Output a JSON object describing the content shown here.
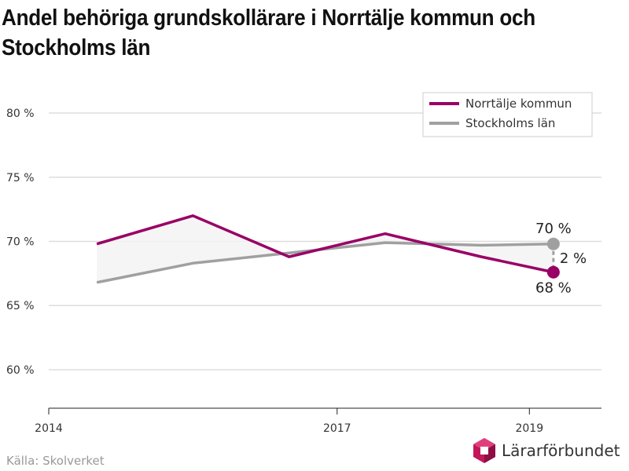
{
  "chart_data": {
    "type": "line",
    "title": "Andel behöriga grundskollärare i Norrtälje kommun och Stockholms län",
    "xlabel": "",
    "ylabel": "",
    "x": [
      2014.5,
      2015.5,
      2016.5,
      2017.5,
      2018.5,
      2019.25
    ],
    "xlim": [
      2014,
      2019.75
    ],
    "ylim": [
      57,
      83
    ],
    "y_ticks": [
      60,
      65,
      70,
      75,
      80
    ],
    "y_tick_labels": [
      "60 %",
      "65 %",
      "70 %",
      "75 %",
      "80 %"
    ],
    "x_ticks": [
      2014,
      2017,
      2019
    ],
    "x_tick_labels": [
      "2014",
      "2017",
      "2019"
    ],
    "grid": true,
    "legend": "top-right",
    "series": [
      {
        "name": "Norrtälje kommun",
        "color": "#990066",
        "values": [
          69.8,
          72.0,
          68.8,
          70.6,
          68.8,
          67.6
        ]
      },
      {
        "name": "Stockholms län",
        "color": "#a0a0a0",
        "values": [
          66.8,
          68.3,
          69.1,
          69.9,
          69.7,
          69.8
        ]
      }
    ],
    "annotations": {
      "stockholm_end": "70 %",
      "norrtalje_end": "68 %",
      "difference": "2 %"
    }
  },
  "source": "Källa: Skolverket",
  "brand": {
    "name": "Lärarförbundet"
  }
}
